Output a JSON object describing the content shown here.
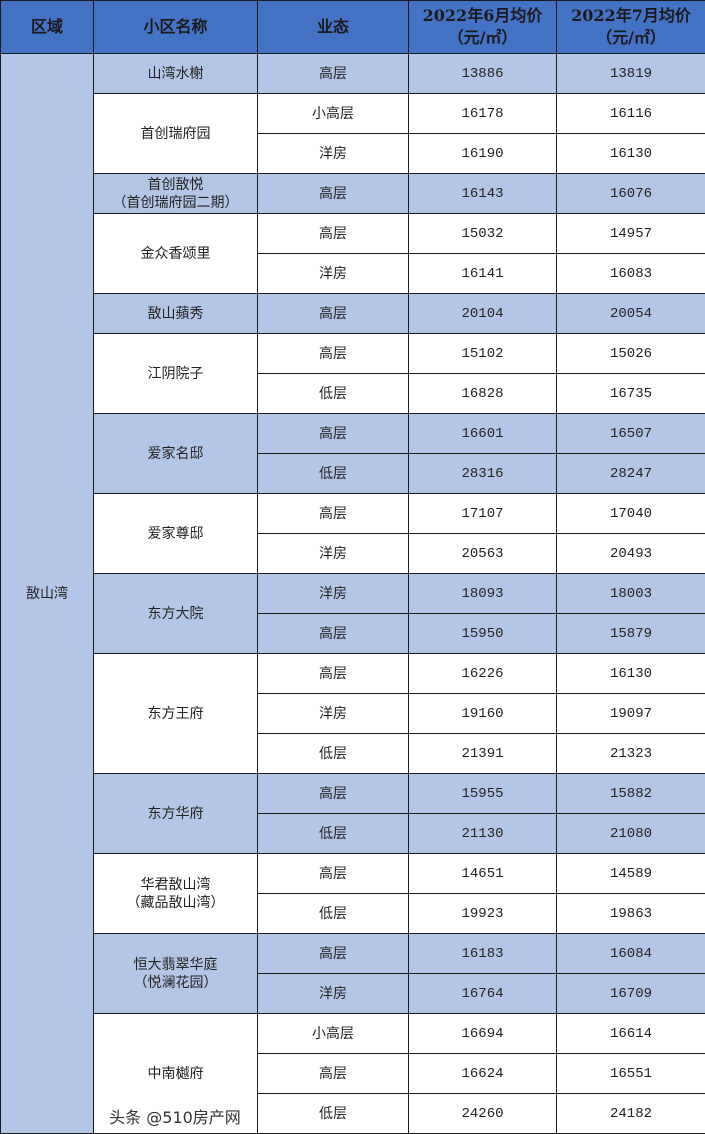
{
  "header": {
    "region": "区域",
    "community": "小区名称",
    "type": "业态",
    "june": [
      "2022年6月均价",
      "（元/㎡）"
    ],
    "july": [
      "2022年7月均价",
      "（元/㎡）"
    ]
  },
  "region": "敔山湾",
  "colors": {
    "header": "#4472c4",
    "band": "#b4c6e7"
  },
  "communities": [
    {
      "name": [
        "山湾水榭"
      ],
      "shaded": true,
      "rows": [
        [
          "高层",
          "13886",
          "13819"
        ]
      ]
    },
    {
      "name": [
        "首创瑞府园"
      ],
      "shaded": false,
      "rows": [
        [
          "小高层",
          "16178",
          "16116"
        ],
        [
          "洋房",
          "16190",
          "16130"
        ]
      ]
    },
    {
      "name": [
        "首创敔悦",
        "（首创瑞府园二期）"
      ],
      "shaded": true,
      "rows": [
        [
          "高层",
          "16143",
          "16076"
        ]
      ]
    },
    {
      "name": [
        "金众香颂里"
      ],
      "shaded": false,
      "rows": [
        [
          "高层",
          "15032",
          "14957"
        ],
        [
          "洋房",
          "16141",
          "16083"
        ]
      ]
    },
    {
      "name": [
        "敔山蘋秀"
      ],
      "shaded": true,
      "rows": [
        [
          "高层",
          "20104",
          "20054"
        ]
      ]
    },
    {
      "name": [
        "江阴院子"
      ],
      "shaded": false,
      "rows": [
        [
          "高层",
          "15102",
          "15026"
        ],
        [
          "低层",
          "16828",
          "16735"
        ]
      ]
    },
    {
      "name": [
        "爱家名邸"
      ],
      "shaded": true,
      "rows": [
        [
          "高层",
          "16601",
          "16507"
        ],
        [
          "低层",
          "28316",
          "28247"
        ]
      ]
    },
    {
      "name": [
        "爱家尊邸"
      ],
      "shaded": false,
      "rows": [
        [
          "高层",
          "17107",
          "17040"
        ],
        [
          "洋房",
          "20563",
          "20493"
        ]
      ]
    },
    {
      "name": [
        "东方大院"
      ],
      "shaded": true,
      "rows": [
        [
          "洋房",
          "18093",
          "18003"
        ],
        [
          "高层",
          "15950",
          "15879"
        ]
      ]
    },
    {
      "name": [
        "东方王府"
      ],
      "shaded": false,
      "rows": [
        [
          "高层",
          "16226",
          "16130"
        ],
        [
          "洋房",
          "19160",
          "19097"
        ],
        [
          "低层",
          "21391",
          "21323"
        ]
      ]
    },
    {
      "name": [
        "东方华府"
      ],
      "shaded": true,
      "rows": [
        [
          "高层",
          "15955",
          "15882"
        ],
        [
          "低层",
          "21130",
          "21080"
        ]
      ]
    },
    {
      "name": [
        "华君敔山湾",
        "（藏品敔山湾）"
      ],
      "shaded": false,
      "rows": [
        [
          "高层",
          "14651",
          "14589"
        ],
        [
          "低层",
          "19923",
          "19863"
        ]
      ]
    },
    {
      "name": [
        "恒大翡翠华庭",
        "（悦澜花园）"
      ],
      "shaded": true,
      "rows": [
        [
          "高层",
          "16183",
          "16084"
        ],
        [
          "洋房",
          "16764",
          "16709"
        ]
      ]
    },
    {
      "name": [
        "中南樾府"
      ],
      "shaded": false,
      "rows": [
        [
          "小高层",
          "16694",
          "16614"
        ],
        [
          "高层",
          "16624",
          "16551"
        ],
        [
          "低层",
          "24260",
          "24182"
        ]
      ]
    }
  ],
  "watermark": "头条 @510房产网"
}
